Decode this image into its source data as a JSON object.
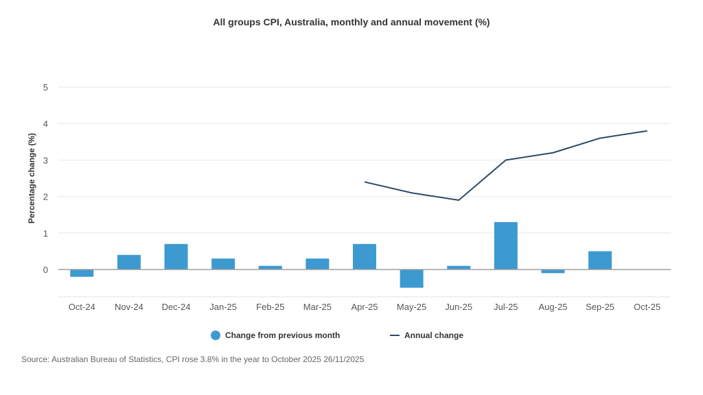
{
  "chart_data": {
    "type": "bar",
    "title": "All groups CPI, Australia, monthly and annual movement (%)",
    "xlabel": "",
    "ylabel": "Percentage change (%)",
    "ylim": [
      -0.75,
      5
    ],
    "yticks": [
      0,
      1,
      2,
      3,
      4,
      5
    ],
    "grid": true,
    "categories": [
      "Oct-24",
      "Nov-24",
      "Dec-24",
      "Jan-25",
      "Feb-25",
      "Mar-25",
      "Apr-25",
      "May-25",
      "Jun-25",
      "Jul-25",
      "Aug-25",
      "Sep-25",
      "Oct-25"
    ],
    "series": [
      {
        "name": "Change from previous month",
        "type": "bar",
        "color": "#3d9ad1",
        "values": [
          -0.2,
          0.4,
          0.7,
          0.3,
          0.1,
          0.3,
          0.7,
          -0.5,
          0.1,
          1.3,
          -0.1,
          0.5,
          0.0
        ]
      },
      {
        "name": "Annual change",
        "type": "line",
        "color": "#2b4a66",
        "values": [
          null,
          null,
          null,
          null,
          null,
          null,
          2.4,
          2.1,
          1.9,
          3.0,
          3.2,
          3.6,
          3.8
        ]
      }
    ],
    "legend_position": "bottom-center"
  },
  "legend": {
    "bar_label": "Change from previous month",
    "line_label": "Annual change"
  },
  "source": "Source: Australian Bureau of Statistics, CPI rose 3.8% in the year to October 2025 26/11/2025"
}
